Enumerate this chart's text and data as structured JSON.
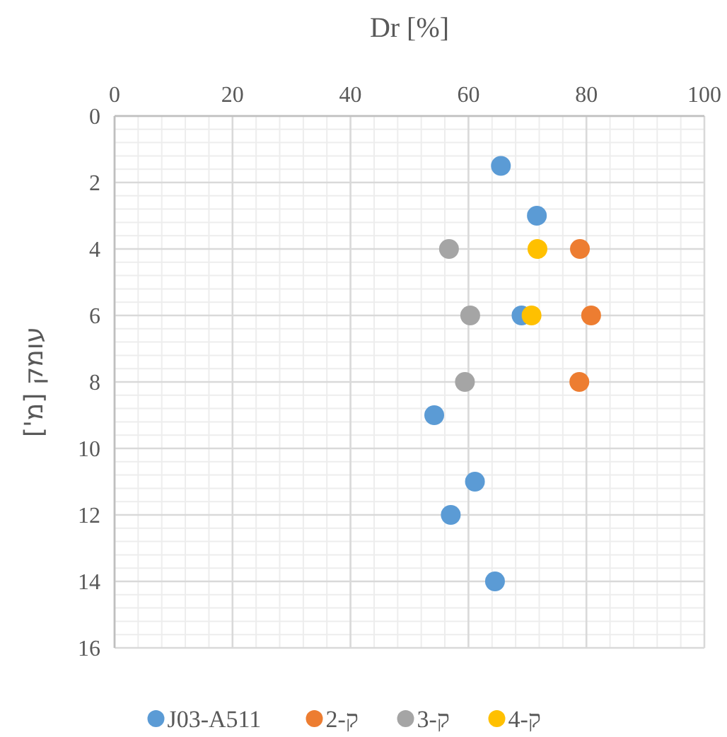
{
  "chart_data": {
    "type": "scatter",
    "xlabel": "Dr [%]",
    "ylabel": "עומק [מ']",
    "xlim": [
      0,
      100
    ],
    "xticks": [
      0,
      20,
      40,
      60,
      80,
      100
    ],
    "ylim": [
      16,
      0
    ],
    "yticks": [
      0,
      2,
      4,
      6,
      8,
      10,
      12,
      14,
      16
    ],
    "grid": true,
    "legend": "bottom",
    "marker": "circle",
    "series": [
      {
        "name": "J03-A511",
        "color": "#5b9bd5",
        "x": [
          65.5,
          71.6,
          69,
          54.2,
          61.1,
          57,
          64.5
        ],
        "values": [
          1.5,
          3,
          6,
          9,
          11,
          12,
          14
        ]
      },
      {
        "name": "ק-2",
        "color": "#ed7d31",
        "x": [
          78.9,
          80.8,
          78.8
        ],
        "values": [
          4,
          6,
          8
        ]
      },
      {
        "name": "ק-3",
        "color": "#a5a5a5",
        "x": [
          56.7,
          60.3,
          59.4
        ],
        "values": [
          4,
          6,
          8
        ]
      },
      {
        "name": "ק-4",
        "color": "#ffc000",
        "x": [
          71.7,
          70.7
        ],
        "values": [
          4,
          6
        ]
      }
    ]
  }
}
